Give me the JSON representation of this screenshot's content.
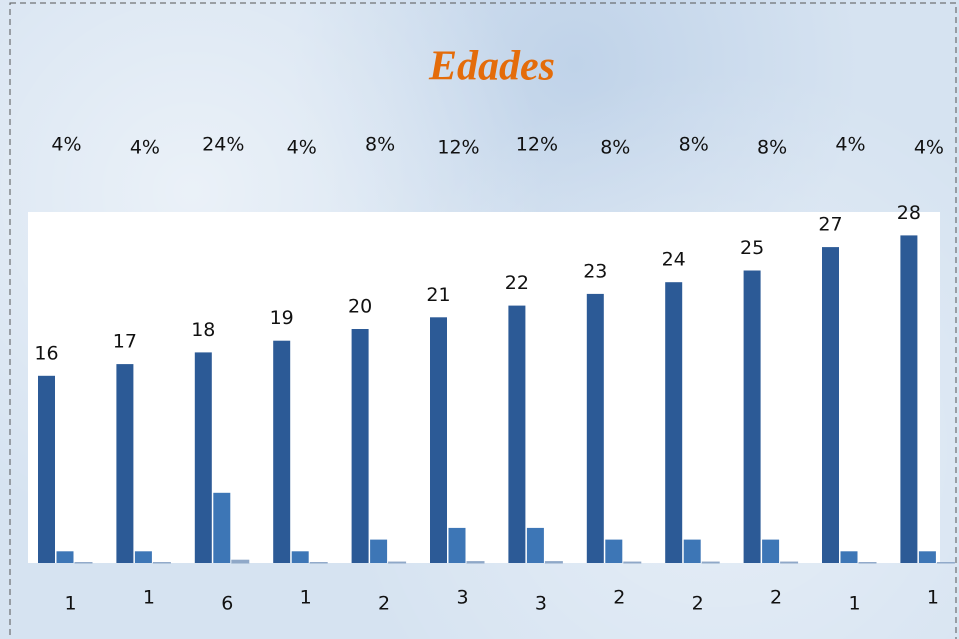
{
  "chart_data": {
    "type": "bar",
    "title": "Edades",
    "series": [
      {
        "color": "#2c5a96",
        "values": [
          16,
          17,
          18,
          19,
          20,
          21,
          22,
          23,
          24,
          25,
          27,
          28
        ]
      },
      {
        "color": "#3d76b6",
        "values": [
          1,
          1,
          6,
          1,
          2,
          3,
          3,
          2,
          2,
          2,
          1,
          1
        ]
      },
      {
        "color": "#8fa8c8",
        "values": [
          0.04,
          0.04,
          0.24,
          0.04,
          0.08,
          0.12,
          0.12,
          0.08,
          0.08,
          0.08,
          0.04,
          0.04
        ],
        "value_labels": [
          "4%",
          "4%",
          "24%",
          "4%",
          "8%",
          "12%",
          "12%",
          "8%",
          "8%",
          "8%",
          "4%",
          "4%"
        ]
      }
    ],
    "ylim": [
      0,
      30
    ]
  }
}
